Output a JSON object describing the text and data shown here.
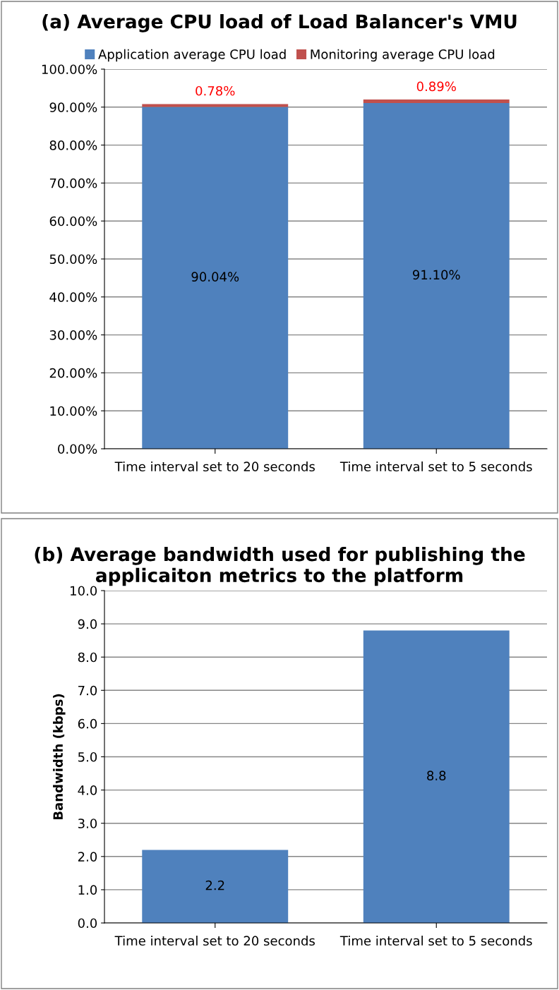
{
  "chart_data": [
    {
      "type": "bar",
      "title": "(a) Average CPU load of Load Balancer's VMU",
      "categories": [
        "Time interval set to 20 seconds",
        "Time interval set to 5 seconds"
      ],
      "stacked": true,
      "series": [
        {
          "name": "Application average CPU load",
          "color": "#4f81bd",
          "values": [
            90.04,
            91.1
          ],
          "value_labels": [
            "90.04%",
            "91.10%"
          ]
        },
        {
          "name": "Monitoring average CPU load",
          "color": "#c0504d",
          "values": [
            0.78,
            0.89
          ],
          "value_labels": [
            "0.78%",
            "0.89%"
          ]
        }
      ],
      "ylim": [
        0,
        100
      ],
      "yticks": [
        {
          "value": 0,
          "label": "0.00%"
        },
        {
          "value": 10,
          "label": "10.00%"
        },
        {
          "value": 20,
          "label": "20.00%"
        },
        {
          "value": 30,
          "label": "30.00%"
        },
        {
          "value": 40,
          "label": "40.00%"
        },
        {
          "value": 50,
          "label": "50.00%"
        },
        {
          "value": 60,
          "label": "60.00%"
        },
        {
          "value": 70,
          "label": "70.00%"
        },
        {
          "value": 80,
          "label": "80.00%"
        },
        {
          "value": 90,
          "label": "90.00%"
        },
        {
          "value": 100,
          "label": "100.00%"
        }
      ],
      "grid": "y",
      "legend": "top"
    },
    {
      "type": "bar",
      "title": "(b) Average bandwidth used for publishing the applicaiton metrics to the platform",
      "ylabel": "Bandwidth (kbps)",
      "categories": [
        "Time interval set to 20 seconds",
        "Time interval set to 5 seconds"
      ],
      "series": [
        {
          "color": "#4f81bd",
          "values": [
            2.2,
            8.8
          ],
          "value_labels": [
            "2.2",
            "8.8"
          ]
        }
      ],
      "ylim": [
        0,
        10
      ],
      "yticks": [
        {
          "value": 0,
          "label": "0.0"
        },
        {
          "value": 1,
          "label": "1.0"
        },
        {
          "value": 2,
          "label": "2.0"
        },
        {
          "value": 3,
          "label": "3.0"
        },
        {
          "value": 4,
          "label": "4.0"
        },
        {
          "value": 5,
          "label": "5.0"
        },
        {
          "value": 6,
          "label": "6.0"
        },
        {
          "value": 7,
          "label": "7.0"
        },
        {
          "value": 8,
          "label": "8.0"
        },
        {
          "value": 9,
          "label": "9.0"
        },
        {
          "value": 10,
          "label": "10.0"
        }
      ],
      "grid": "y"
    }
  ]
}
